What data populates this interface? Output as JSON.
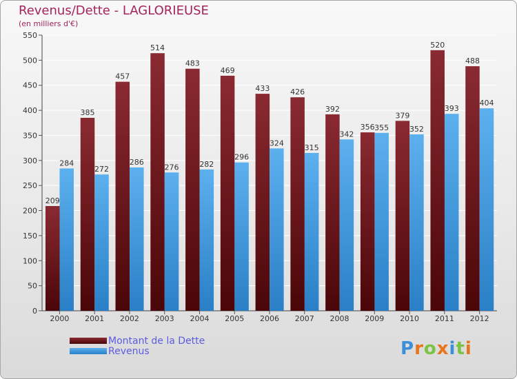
{
  "title": "Revenus/Dette - LAGLORIEUSE",
  "subtitle": "(en milliers d'€)",
  "logo": "Proxiti",
  "colors": {
    "title": "#a2245a",
    "debt_bar": "#7a1e24",
    "revenue_bar": "#3d9be0",
    "legend_text": "#5c5ce0",
    "grid": "#ffffff",
    "logo_letters": [
      "#3a8fd8",
      "#e8741d",
      "#7cc243",
      "#e8741d",
      "#3a8fd8",
      "#7cc243",
      "#e8741d"
    ]
  },
  "chart_data": {
    "type": "bar",
    "categories": [
      "2000",
      "2001",
      "2002",
      "2003",
      "2004",
      "2005",
      "2006",
      "2007",
      "2008",
      "2009",
      "2010",
      "2011",
      "2012"
    ],
    "series": [
      {
        "name": "Montant de la Dette",
        "values": [
          209,
          385,
          457,
          514,
          483,
          469,
          433,
          426,
          392,
          356,
          379,
          520,
          488
        ]
      },
      {
        "name": "Revenus",
        "values": [
          284,
          272,
          286,
          276,
          282,
          296,
          324,
          315,
          342,
          355,
          352,
          393,
          404
        ]
      }
    ],
    "title": "Revenus/Dette - LAGLORIEUSE",
    "subtitle": "(en milliers d'€)",
    "ylim": [
      0,
      550
    ],
    "yticks": [
      0,
      50,
      100,
      150,
      200,
      250,
      300,
      350,
      400,
      450,
      500,
      550
    ],
    "grid": true,
    "legend_position": "bottom-left",
    "data_labels": true
  }
}
